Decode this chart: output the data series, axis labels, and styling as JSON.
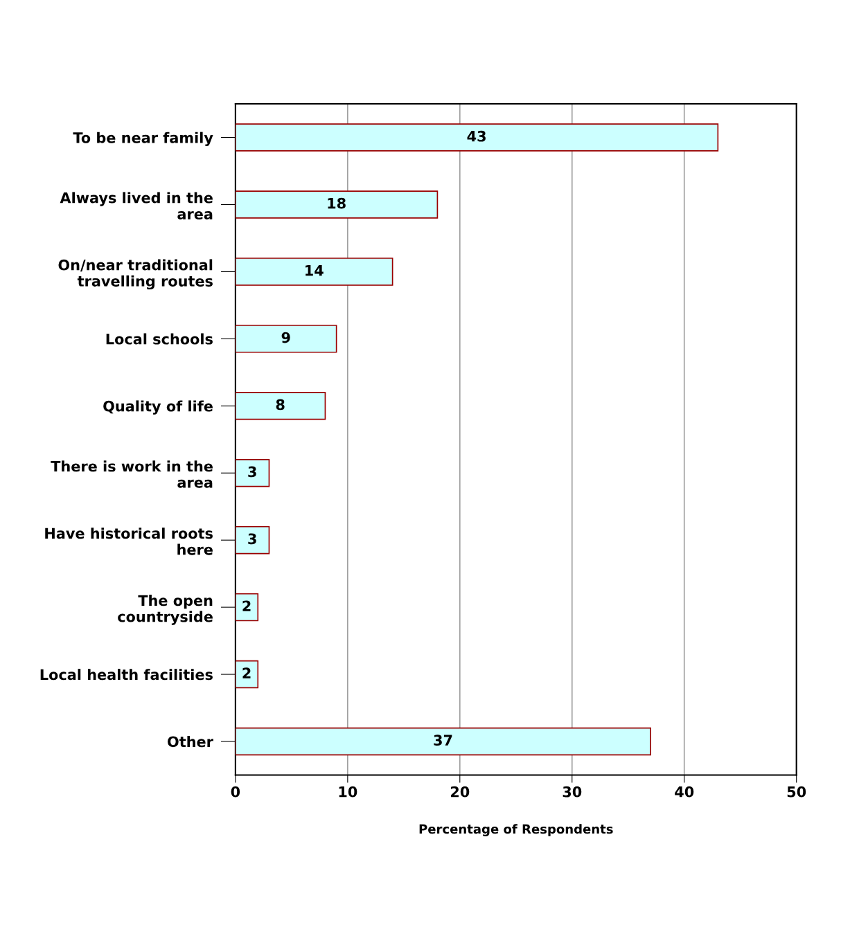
{
  "chart_data": {
    "type": "bar",
    "orientation": "horizontal",
    "xlabel": "Percentage of Respondents",
    "categories": [
      "To be near family",
      "Always lived in the\narea",
      "On/near traditional\ntravelling routes",
      "Local schools",
      "Quality of life",
      "There is work in the\narea",
      "Have historical roots\nhere",
      "The open\ncountryside",
      "Local health facilities",
      "Other"
    ],
    "values": [
      43,
      18,
      14,
      9,
      8,
      3,
      3,
      2,
      2,
      37
    ],
    "color": "#ccffff",
    "xlim": [
      0,
      50
    ],
    "xticks": [
      0,
      10,
      20,
      30,
      40,
      50
    ],
    "grid": "x",
    "data_labels": true
  }
}
